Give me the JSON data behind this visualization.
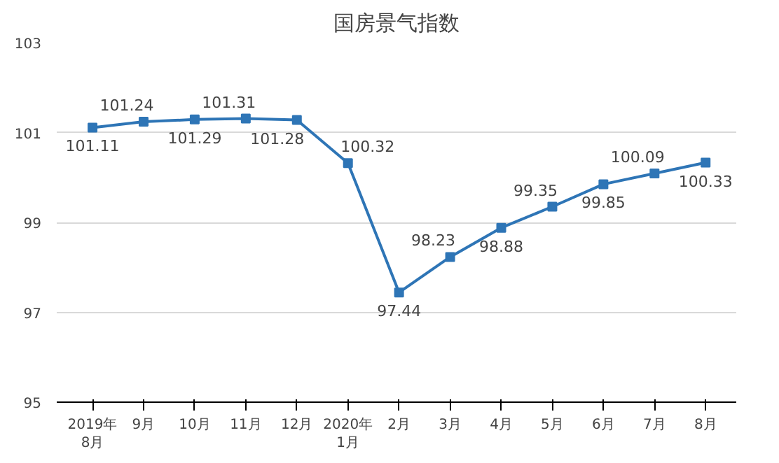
{
  "chart_data": {
    "type": "line",
    "title": "国房景气指数",
    "categories": [
      "2019年\n8月",
      "9月",
      "10月",
      "11月",
      "12月",
      "2020年\n1月",
      "2月",
      "3月",
      "4月",
      "5月",
      "6月",
      "7月",
      "8月"
    ],
    "series": [
      {
        "color": "#2e75b6",
        "values": [
          101.11,
          101.24,
          101.29,
          101.31,
          101.28,
          100.32,
          97.44,
          98.23,
          98.88,
          99.35,
          99.85,
          100.09,
          100.33
        ]
      }
    ],
    "ylim": [
      95,
      103
    ],
    "yticks": [
      95,
      97,
      99,
      101,
      103
    ],
    "grid": "y",
    "marker": "square",
    "line_style": "solid",
    "data_labels": true
  }
}
